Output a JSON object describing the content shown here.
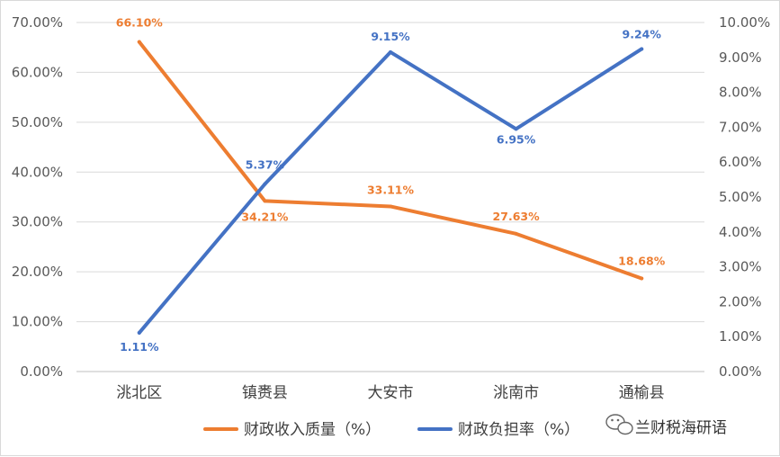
{
  "chart_data": {
    "type": "line",
    "categories": [
      "洮北区",
      "镇赉县",
      "大安市",
      "洮南市",
      "通榆县"
    ],
    "series": [
      {
        "name": "财政收入质量（%）",
        "axis": "left",
        "color": "#ED7D31",
        "values": [
          66.1,
          34.21,
          33.11,
          27.63,
          18.68
        ],
        "labels": [
          "66.10%",
          "34.21%",
          "33.11%",
          "27.63%",
          "18.68%"
        ]
      },
      {
        "name": "财政负担率（%）",
        "axis": "right",
        "color": "#4472C4",
        "values": [
          1.11,
          5.37,
          9.15,
          6.95,
          9.24
        ],
        "labels": [
          "1.11%",
          "5.37%",
          "9.15%",
          "6.95%",
          "9.24%"
        ]
      }
    ],
    "y_left": {
      "min": 0,
      "max": 70,
      "step": 10,
      "ticks": [
        "0.00%",
        "10.00%",
        "20.00%",
        "30.00%",
        "40.00%",
        "50.00%",
        "60.00%",
        "70.00%"
      ]
    },
    "y_right": {
      "min": 0,
      "max": 10,
      "step": 1,
      "ticks": [
        "0.00%",
        "1.00%",
        "2.00%",
        "3.00%",
        "4.00%",
        "5.00%",
        "6.00%",
        "7.00%",
        "8.00%",
        "9.00%",
        "10.00%"
      ]
    },
    "grid": true,
    "legend_position": "bottom"
  },
  "watermark": {
    "icon": "wechat-icon",
    "text": "兰财税海研语"
  }
}
